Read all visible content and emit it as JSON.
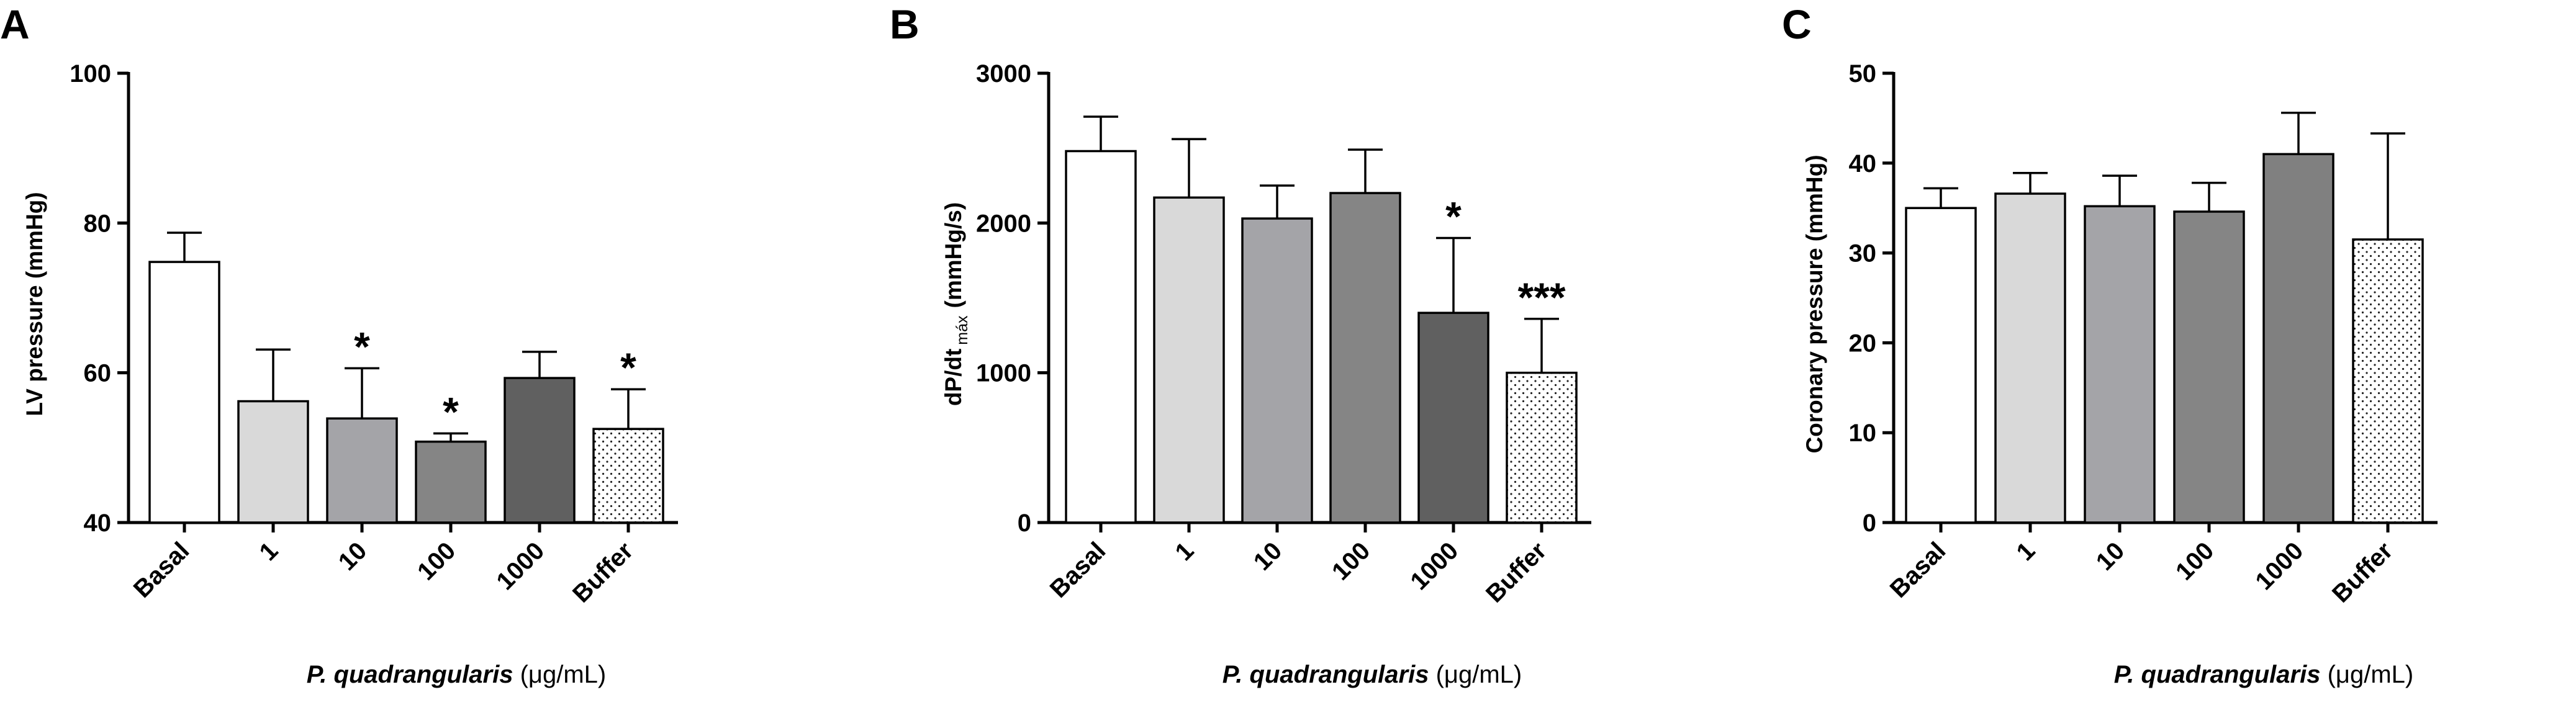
{
  "chart_data": [
    {
      "type": "bar",
      "panel": "A",
      "ylabel": "LV pressure (mmHg)",
      "xlabel_italic": "P. quadrangularis",
      "xlabel_unit": "(μg/mL)",
      "ylim": [
        40,
        100
      ],
      "yticks": [
        40,
        60,
        80,
        100
      ],
      "categories": [
        "Basal",
        "1",
        "10",
        "100",
        "1000",
        "Buffer"
      ],
      "values": [
        74.8,
        56.2,
        53.9,
        50.8,
        59.3,
        52.5
      ],
      "errors": [
        3.9,
        6.9,
        6.7,
        1.1,
        3.5,
        5.3
      ],
      "significance": [
        "",
        "",
        "*",
        "*",
        "",
        "*"
      ],
      "colors": [
        "#ffffff",
        "#d9d9d9",
        "#a4a4a8",
        "#858585",
        "#606060",
        "dotted"
      ]
    },
    {
      "type": "bar",
      "panel": "B",
      "ylabel": "dP/dt",
      "ylabel_sub": "máx",
      "ylabel_unit": "(mmHg/s)",
      "xlabel_italic": "P. quadrangularis",
      "xlabel_unit": "(μg/mL)",
      "ylim": [
        0,
        3000
      ],
      "yticks": [
        0,
        1000,
        2000,
        3000
      ],
      "categories": [
        "Basal",
        "1",
        "10",
        "100",
        "1000",
        "Buffer"
      ],
      "values": [
        2480,
        2170,
        2030,
        2200,
        1400,
        1000
      ],
      "errors": [
        230,
        390,
        220,
        290,
        500,
        360
      ],
      "significance": [
        "",
        "",
        "",
        "",
        "*",
        "***"
      ],
      "colors": [
        "#ffffff",
        "#d9d9d9",
        "#a4a4a8",
        "#858585",
        "#606060",
        "dotted"
      ]
    },
    {
      "type": "bar",
      "panel": "C",
      "ylabel": "Coronary pressure (mmHg)",
      "xlabel_italic": "P. quadrangularis",
      "xlabel_unit": "(μg/mL)",
      "ylim": [
        0,
        50
      ],
      "yticks": [
        0,
        10,
        20,
        30,
        40,
        50
      ],
      "categories": [
        "Basal",
        "1",
        "10",
        "100",
        "1000",
        "Buffer"
      ],
      "values": [
        35.0,
        36.6,
        35.2,
        34.6,
        41.0,
        31.5
      ],
      "errors": [
        2.2,
        2.3,
        3.4,
        3.2,
        4.6,
        11.8
      ],
      "significance": [
        "",
        "",
        "",
        "",
        "",
        ""
      ],
      "colors": [
        "#ffffff",
        "#d9d9d9",
        "#a4a4a8",
        "#858585",
        "#808080",
        "dotted"
      ]
    }
  ]
}
